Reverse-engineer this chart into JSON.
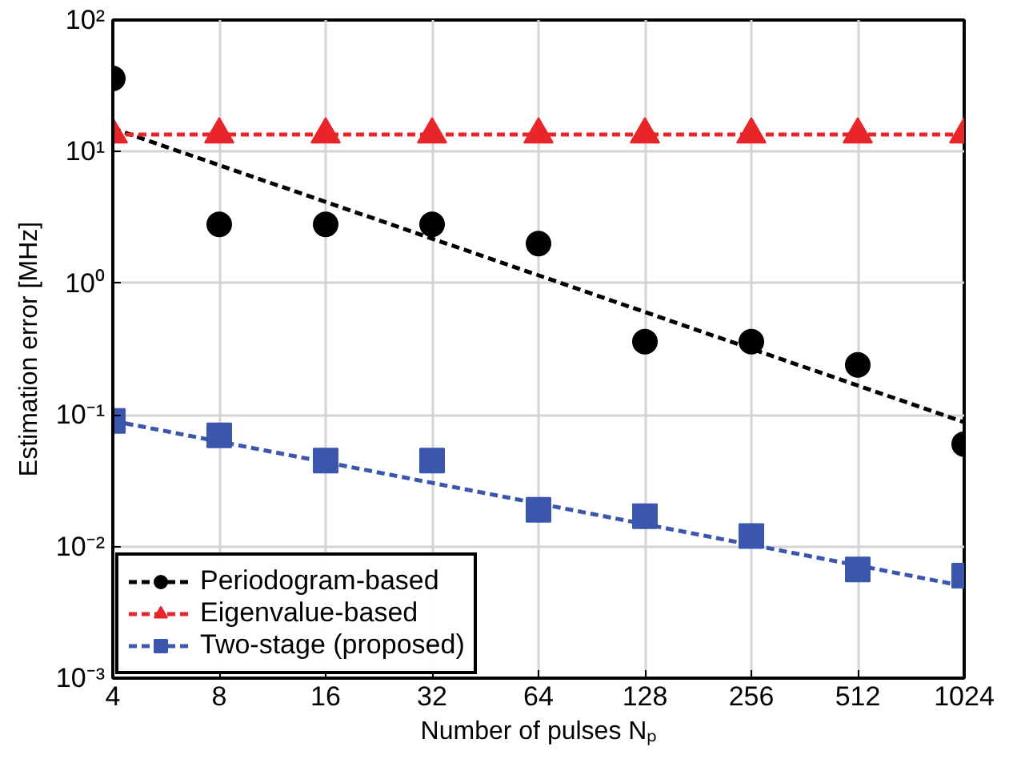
{
  "chart_data": {
    "type": "scatter",
    "xlabel": "Number of pulses Nₚ",
    "ylabel": "Estimation error [MHz]",
    "log": "xy",
    "xlim": [
      4,
      1024
    ],
    "xticks": [
      4,
      8,
      16,
      32,
      64,
      128,
      256,
      512,
      1024
    ],
    "ylim": [
      0.001,
      100
    ],
    "yticks": [
      {
        "value": 0.001,
        "label": "10⁻³"
      },
      {
        "value": 0.01,
        "label": "10⁻²"
      },
      {
        "value": 0.1,
        "label": "10⁻¹"
      },
      {
        "value": 1,
        "label": "10⁰"
      },
      {
        "value": 10,
        "label": "10¹"
      },
      {
        "value": 100,
        "label": "10²"
      }
    ],
    "grid": true,
    "legend": "bottom left",
    "series": [
      {
        "name": "Periodogram-based",
        "color": "#000000",
        "marker": "circle",
        "x": [
          4,
          8,
          16,
          32,
          64,
          128,
          256,
          512,
          1024
        ],
        "values": [
          36,
          2.8,
          2.8,
          2.8,
          2.0,
          0.36,
          0.36,
          0.24,
          0.06
        ]
      },
      {
        "type": "line",
        "color": "#000000",
        "line_style": "dashed",
        "marker": "none",
        "x": [
          4,
          1024
        ],
        "values": [
          15,
          0.088
        ]
      },
      {
        "name": "Eigenvalue-based",
        "type": "line",
        "color": "#e8262a",
        "line_style": "dashed",
        "marker": "triangle",
        "x": [
          4,
          8,
          16,
          32,
          64,
          128,
          256,
          512,
          1024
        ],
        "values": [
          13.5,
          13.5,
          13.5,
          13.5,
          13.5,
          13.5,
          13.5,
          13.5,
          13.5
        ]
      },
      {
        "name": "Two-stage (proposed)",
        "color": "#3a56ad",
        "marker": "square",
        "x": [
          4,
          8,
          16,
          32,
          64,
          128,
          256,
          512,
          1024
        ],
        "values": [
          0.09,
          0.07,
          0.045,
          0.045,
          0.019,
          0.017,
          0.012,
          0.0067,
          0.006
        ]
      },
      {
        "type": "line",
        "color": "#3a56ad",
        "line_style": "dashed",
        "marker": "none",
        "x": [
          4,
          1024
        ],
        "values": [
          0.09,
          0.005
        ]
      }
    ]
  }
}
